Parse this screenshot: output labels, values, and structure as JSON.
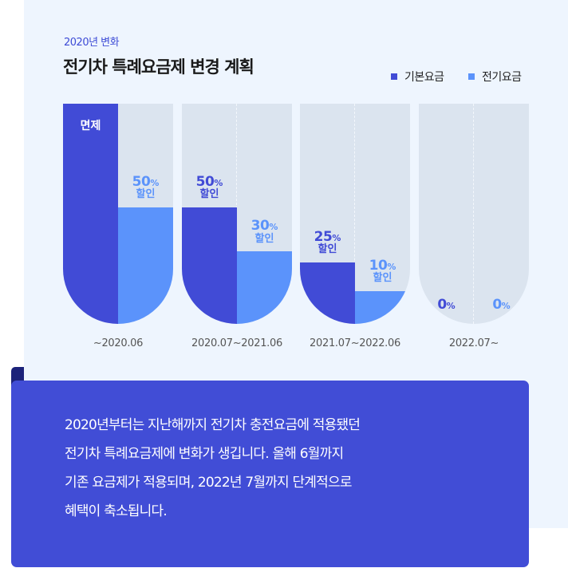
{
  "header": {
    "subtitle": "2020년 변화",
    "title": "전기차 특례요금제 변경 계획"
  },
  "colors": {
    "base": "#414bd6",
    "charge": "#5b93fb",
    "empty": "#dbe4ef"
  },
  "chart_data": {
    "type": "bar",
    "title": "전기차 특례요금제 변경 계획",
    "legend_position": "top-right",
    "series_names": [
      "기본요금",
      "전기요금"
    ],
    "categories": [
      "~2020.06",
      "2020.07~2021.06",
      "2021.07~2022.06",
      "2022.07~"
    ],
    "groups": [
      {
        "period": "~2020.06",
        "base": {
          "value": 100,
          "fill": 1.0,
          "label": "면제"
        },
        "charge": {
          "value": 50,
          "fill": 0.53,
          "num": "50",
          "pct": "%",
          "text": "할인"
        }
      },
      {
        "period": "2020.07~2021.06",
        "base": {
          "value": 50,
          "fill": 0.53,
          "num": "50",
          "pct": "%",
          "text": "할인"
        },
        "charge": {
          "value": 30,
          "fill": 0.33,
          "num": "30",
          "pct": "%",
          "text": "할인"
        }
      },
      {
        "period": "2021.07~2022.06",
        "base": {
          "value": 25,
          "fill": 0.28,
          "num": "25",
          "pct": "%",
          "text": "할인"
        },
        "charge": {
          "value": 10,
          "fill": 0.15,
          "num": "10",
          "pct": "%",
          "text": "할인"
        }
      },
      {
        "period": "2022.07~",
        "base": {
          "value": 0,
          "fill": 0,
          "num": "0",
          "pct": "%"
        },
        "charge": {
          "value": 0,
          "fill": 0,
          "num": "0",
          "pct": "%"
        }
      }
    ]
  },
  "note": {
    "lines": [
      "2020년부터는 지난해까지 전기차 충전요금에 적용됐던",
      "전기차 특례요금제에 변화가 생깁니다. 올해 6월까지",
      "기존 요금제가 적용되며, 2022년 7월까지 단계적으로",
      "혜택이 축소됩니다."
    ]
  }
}
